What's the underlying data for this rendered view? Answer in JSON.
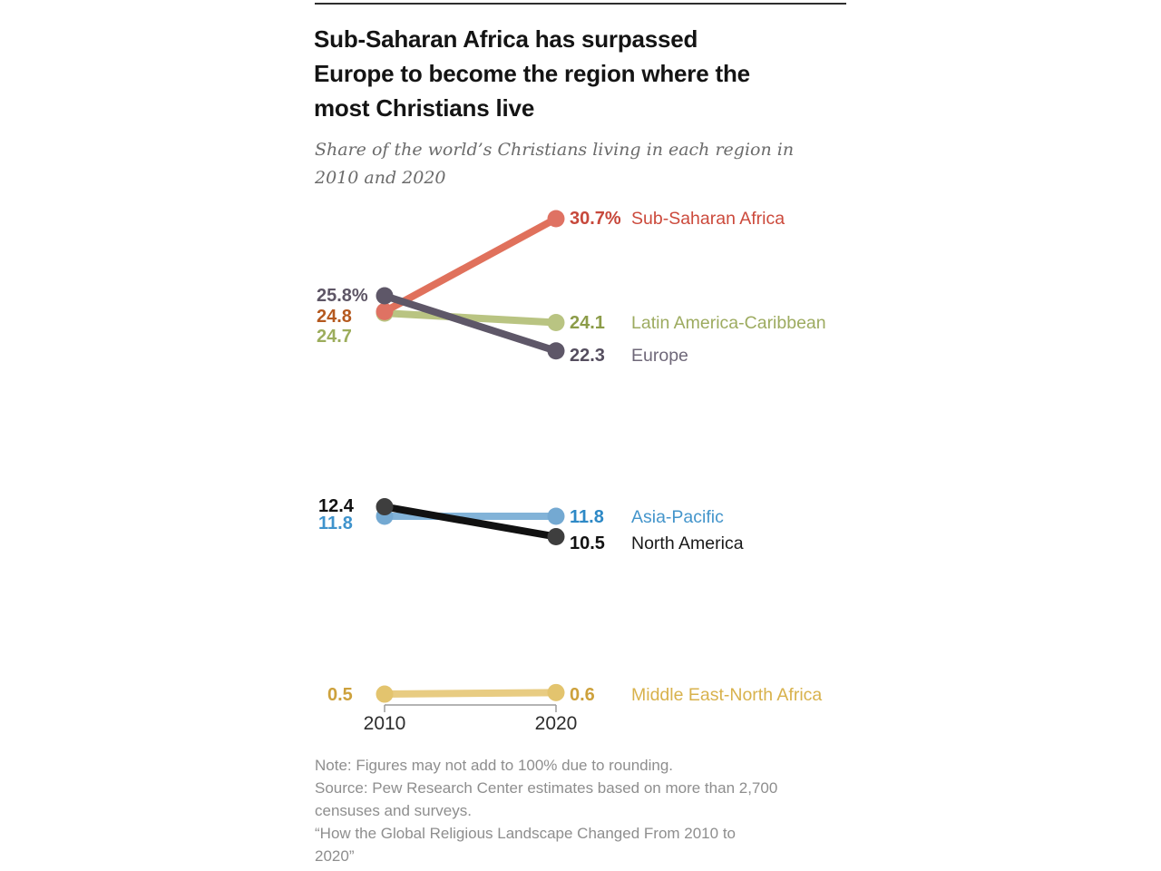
{
  "header": {
    "title": "Sub-Saharan Africa has surpassed\nEurope to become the region where the\nmost Christians live",
    "subtitle": "Share of the world’s Christians living in each region in\n2010 and 2020"
  },
  "chart_data": {
    "type": "line",
    "variant": "slope-chart",
    "title": "Share of the world's Christians living in each region in 2010 and 2020",
    "x": [
      "2010",
      "2020"
    ],
    "unit": "percent of world's Christians",
    "ylim": [
      0,
      31
    ],
    "grid": false,
    "legend_position": "right-of-lines",
    "axis_color": "#9b9b9b",
    "series": [
      {
        "id": "latin-america-caribbean",
        "name": "Latin America-Caribbean",
        "values": [
          24.7,
          24.1
        ],
        "left_label": "24.7",
        "right_value": "24.1",
        "colors": {
          "line": "#b9c482",
          "dot": "#b9c482",
          "left_text": "#9cad5c",
          "value_text": "#8c9c49",
          "name_text": "#9dab60"
        }
      },
      {
        "id": "sub-saharan-africa",
        "name": "Sub-Saharan Africa",
        "values": [
          24.8,
          30.7
        ],
        "left_label": "24.8",
        "right_value": "30.7%",
        "colors": {
          "line": "#e0715c",
          "dot": "#df7263",
          "left_text": "#b5591f",
          "value_text": "#c7483b",
          "name_text": "#cc4a3c"
        }
      },
      {
        "id": "europe",
        "name": "Europe",
        "values": [
          25.8,
          22.3
        ],
        "left_label": "25.8%",
        "right_value": "22.3",
        "colors": {
          "line": "#5e5768",
          "dot": "#5e5768",
          "left_text": "#5e5666",
          "value_text": "#554e5f",
          "name_text": "#6f6879"
        }
      },
      {
        "id": "asia-pacific",
        "name": "Asia-Pacific",
        "values": [
          11.8,
          11.8
        ],
        "left_label": "11.8",
        "right_value": "11.8",
        "colors": {
          "line": "#82b3d8",
          "dot": "#74a9d2",
          "left_text": "#3f93cc",
          "value_text": "#2e89c6",
          "name_text": "#4495cb"
        }
      },
      {
        "id": "north-america",
        "name": "North America",
        "values": [
          12.4,
          10.5
        ],
        "left_label": "12.4",
        "right_value": "10.5",
        "colors": {
          "line": "#111111",
          "dot": "#3e3e3e",
          "left_text": "#111111",
          "value_text": "#121212",
          "name_text": "#1a1a1a"
        }
      },
      {
        "id": "middle-east-north-africa",
        "name": "Middle East-North Africa",
        "values": [
          0.5,
          0.6
        ],
        "left_label": "0.5",
        "right_value": "0.6",
        "colors": {
          "line": "#e8cc82",
          "dot": "#e3c46e",
          "left_text": "#cda13c",
          "value_text": "#cda13c",
          "name_text": "#d8b24c"
        }
      }
    ]
  },
  "footer": {
    "note": "Note: Figures may not add to 100% due to rounding.\nSource: Pew Research Center estimates based on more than 2,700\ncensuses and surveys.\n“How the Global Religious Landscape Changed From 2010 to\n2020”"
  }
}
